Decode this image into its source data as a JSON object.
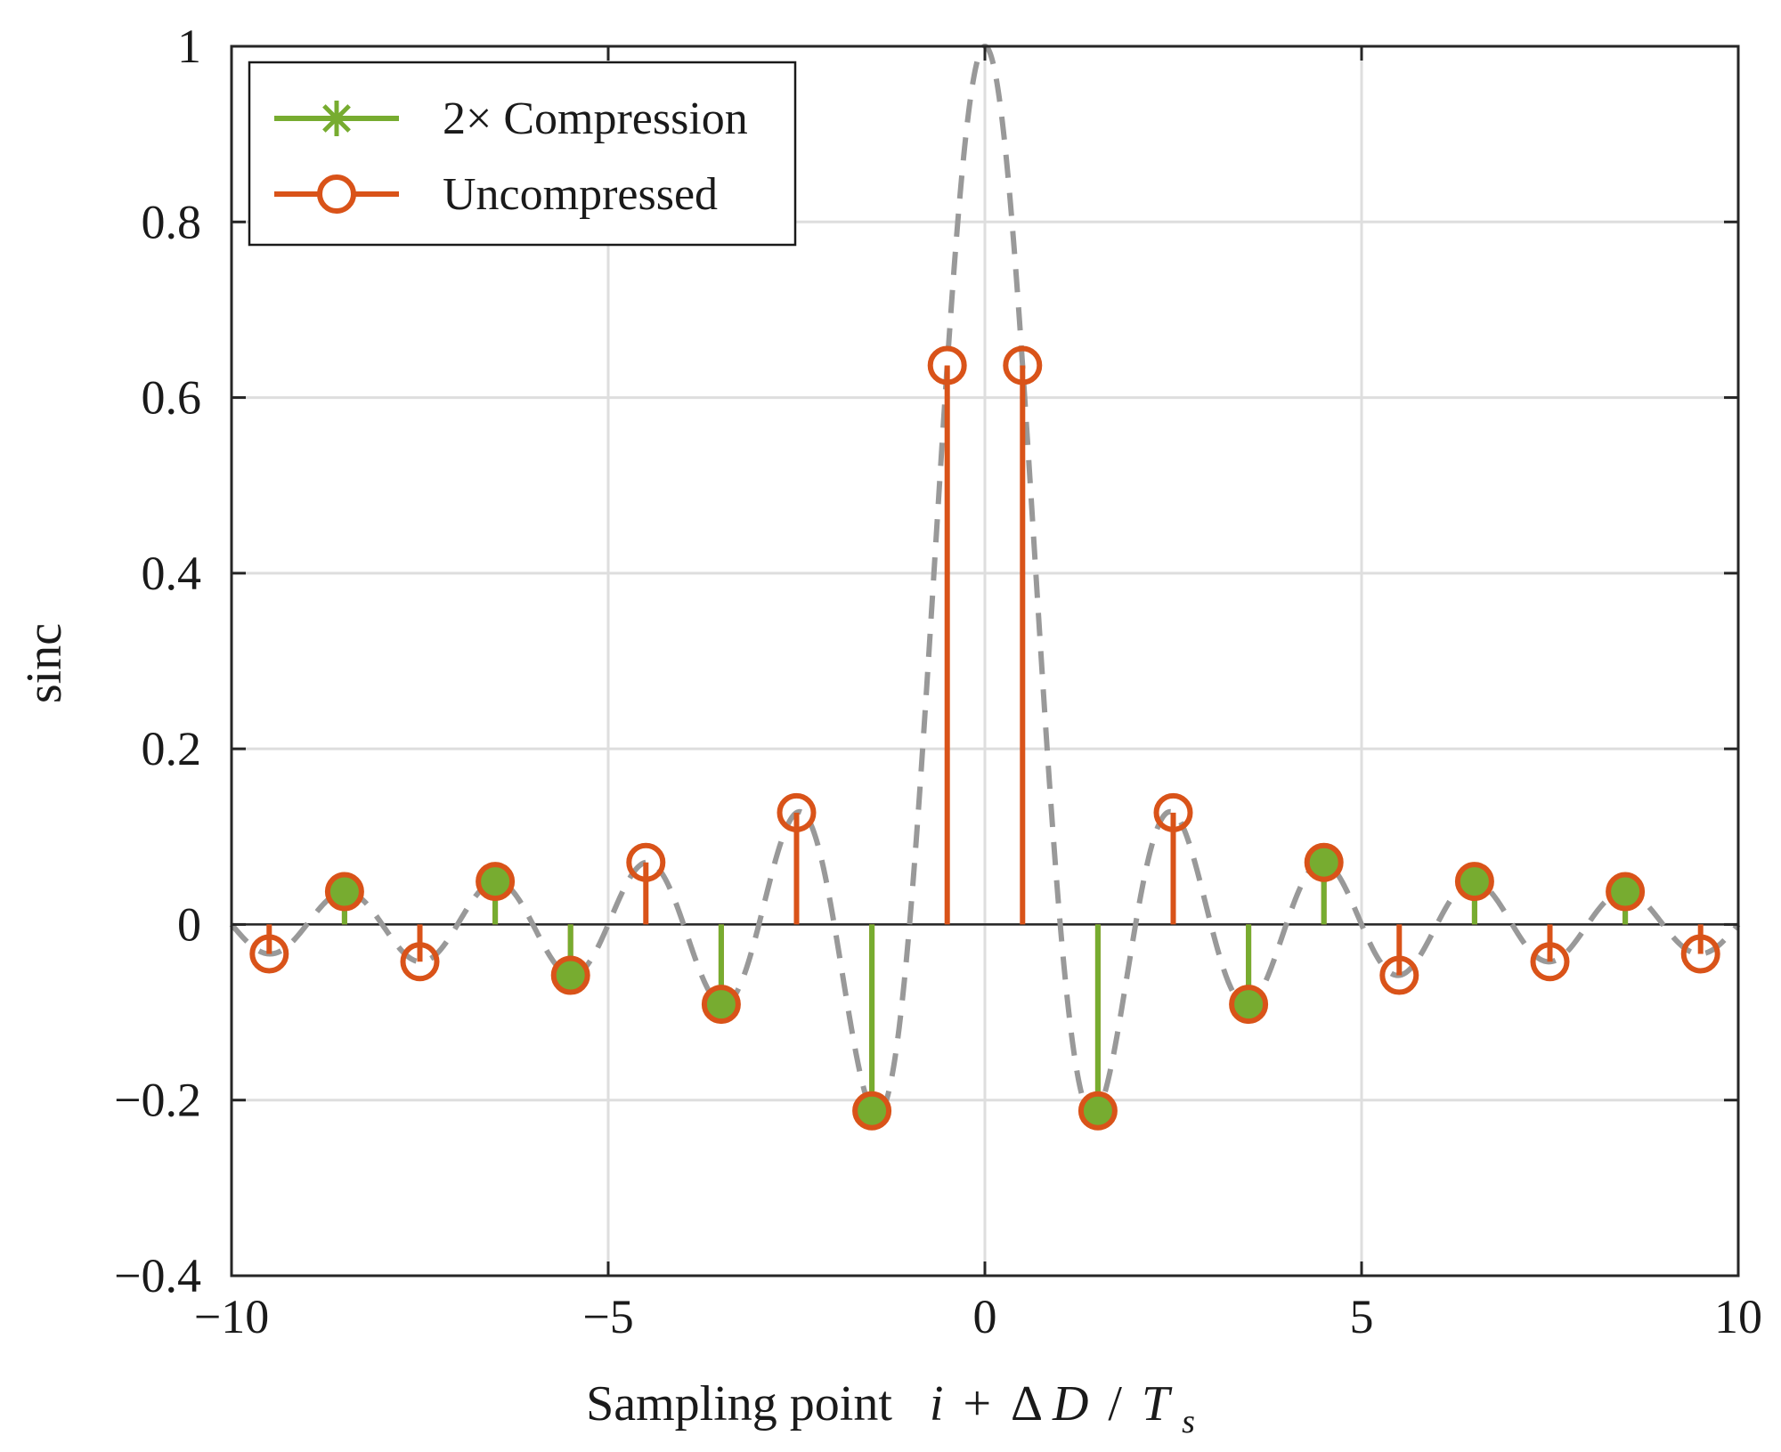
{
  "chart_data": {
    "type": "stem",
    "xlabel_prefix": "Sampling point",
    "xlabel_math": {
      "i": "i",
      "plus": "+",
      "delta": "Δ",
      "D": "D",
      "slash": "/",
      "T": "T",
      "sub": "s"
    },
    "ylabel": "sinc",
    "xlim": [
      -10,
      10
    ],
    "ylim": [
      -0.4,
      1
    ],
    "xticks": [
      -10,
      -5,
      0,
      5,
      10
    ],
    "xtick_labels": [
      "−10",
      "−5",
      "0",
      "5",
      "10"
    ],
    "yticks": [
      -0.4,
      -0.2,
      0,
      0.2,
      0.4,
      0.6,
      0.8,
      1
    ],
    "ytick_labels": [
      "−0.4",
      "−0.2",
      "0",
      "0.2",
      "0.4",
      "0.6",
      "0.8",
      "1"
    ],
    "grid": true,
    "legend_position": "top-left",
    "legend": [
      {
        "name": "2× Compression",
        "color": "#77ac30",
        "marker": "asterisk"
      },
      {
        "name": "Uncompressed",
        "color": "#d95319",
        "marker": "circle"
      }
    ],
    "series": [
      {
        "name": "Uncompressed",
        "color": "#d95319",
        "marker": "circle",
        "x": [
          -9.5,
          -8.5,
          -7.5,
          -6.5,
          -5.5,
          -4.5,
          -3.5,
          -2.5,
          -1.5,
          -0.5,
          0.5,
          1.5,
          2.5,
          3.5,
          4.5,
          5.5,
          6.5,
          7.5,
          8.5,
          9.5
        ],
        "y": [
          -0.0335,
          0.0374,
          -0.0424,
          0.049,
          -0.0579,
          0.0707,
          -0.0909,
          0.1273,
          -0.2122,
          0.6366,
          0.6366,
          -0.2122,
          0.1273,
          -0.0909,
          0.0707,
          -0.0579,
          0.049,
          -0.0424,
          0.0374,
          -0.0335
        ]
      },
      {
        "name": "2× Compression",
        "color": "#77ac30",
        "marker": "asterisk",
        "x": [
          -8.5,
          -6.5,
          -5.5,
          -3.5,
          -1.5,
          1.5,
          3.5,
          4.5,
          6.5,
          8.5
        ],
        "y": [
          0.0374,
          0.049,
          -0.0579,
          -0.0909,
          -0.2122,
          -0.2122,
          -0.0909,
          0.0707,
          0.049,
          0.0374
        ]
      }
    ],
    "continuous_curve": {
      "name": "sinc",
      "function": "sin(pi x)/(pi x)",
      "color": "#999999",
      "style": "dashed"
    }
  }
}
